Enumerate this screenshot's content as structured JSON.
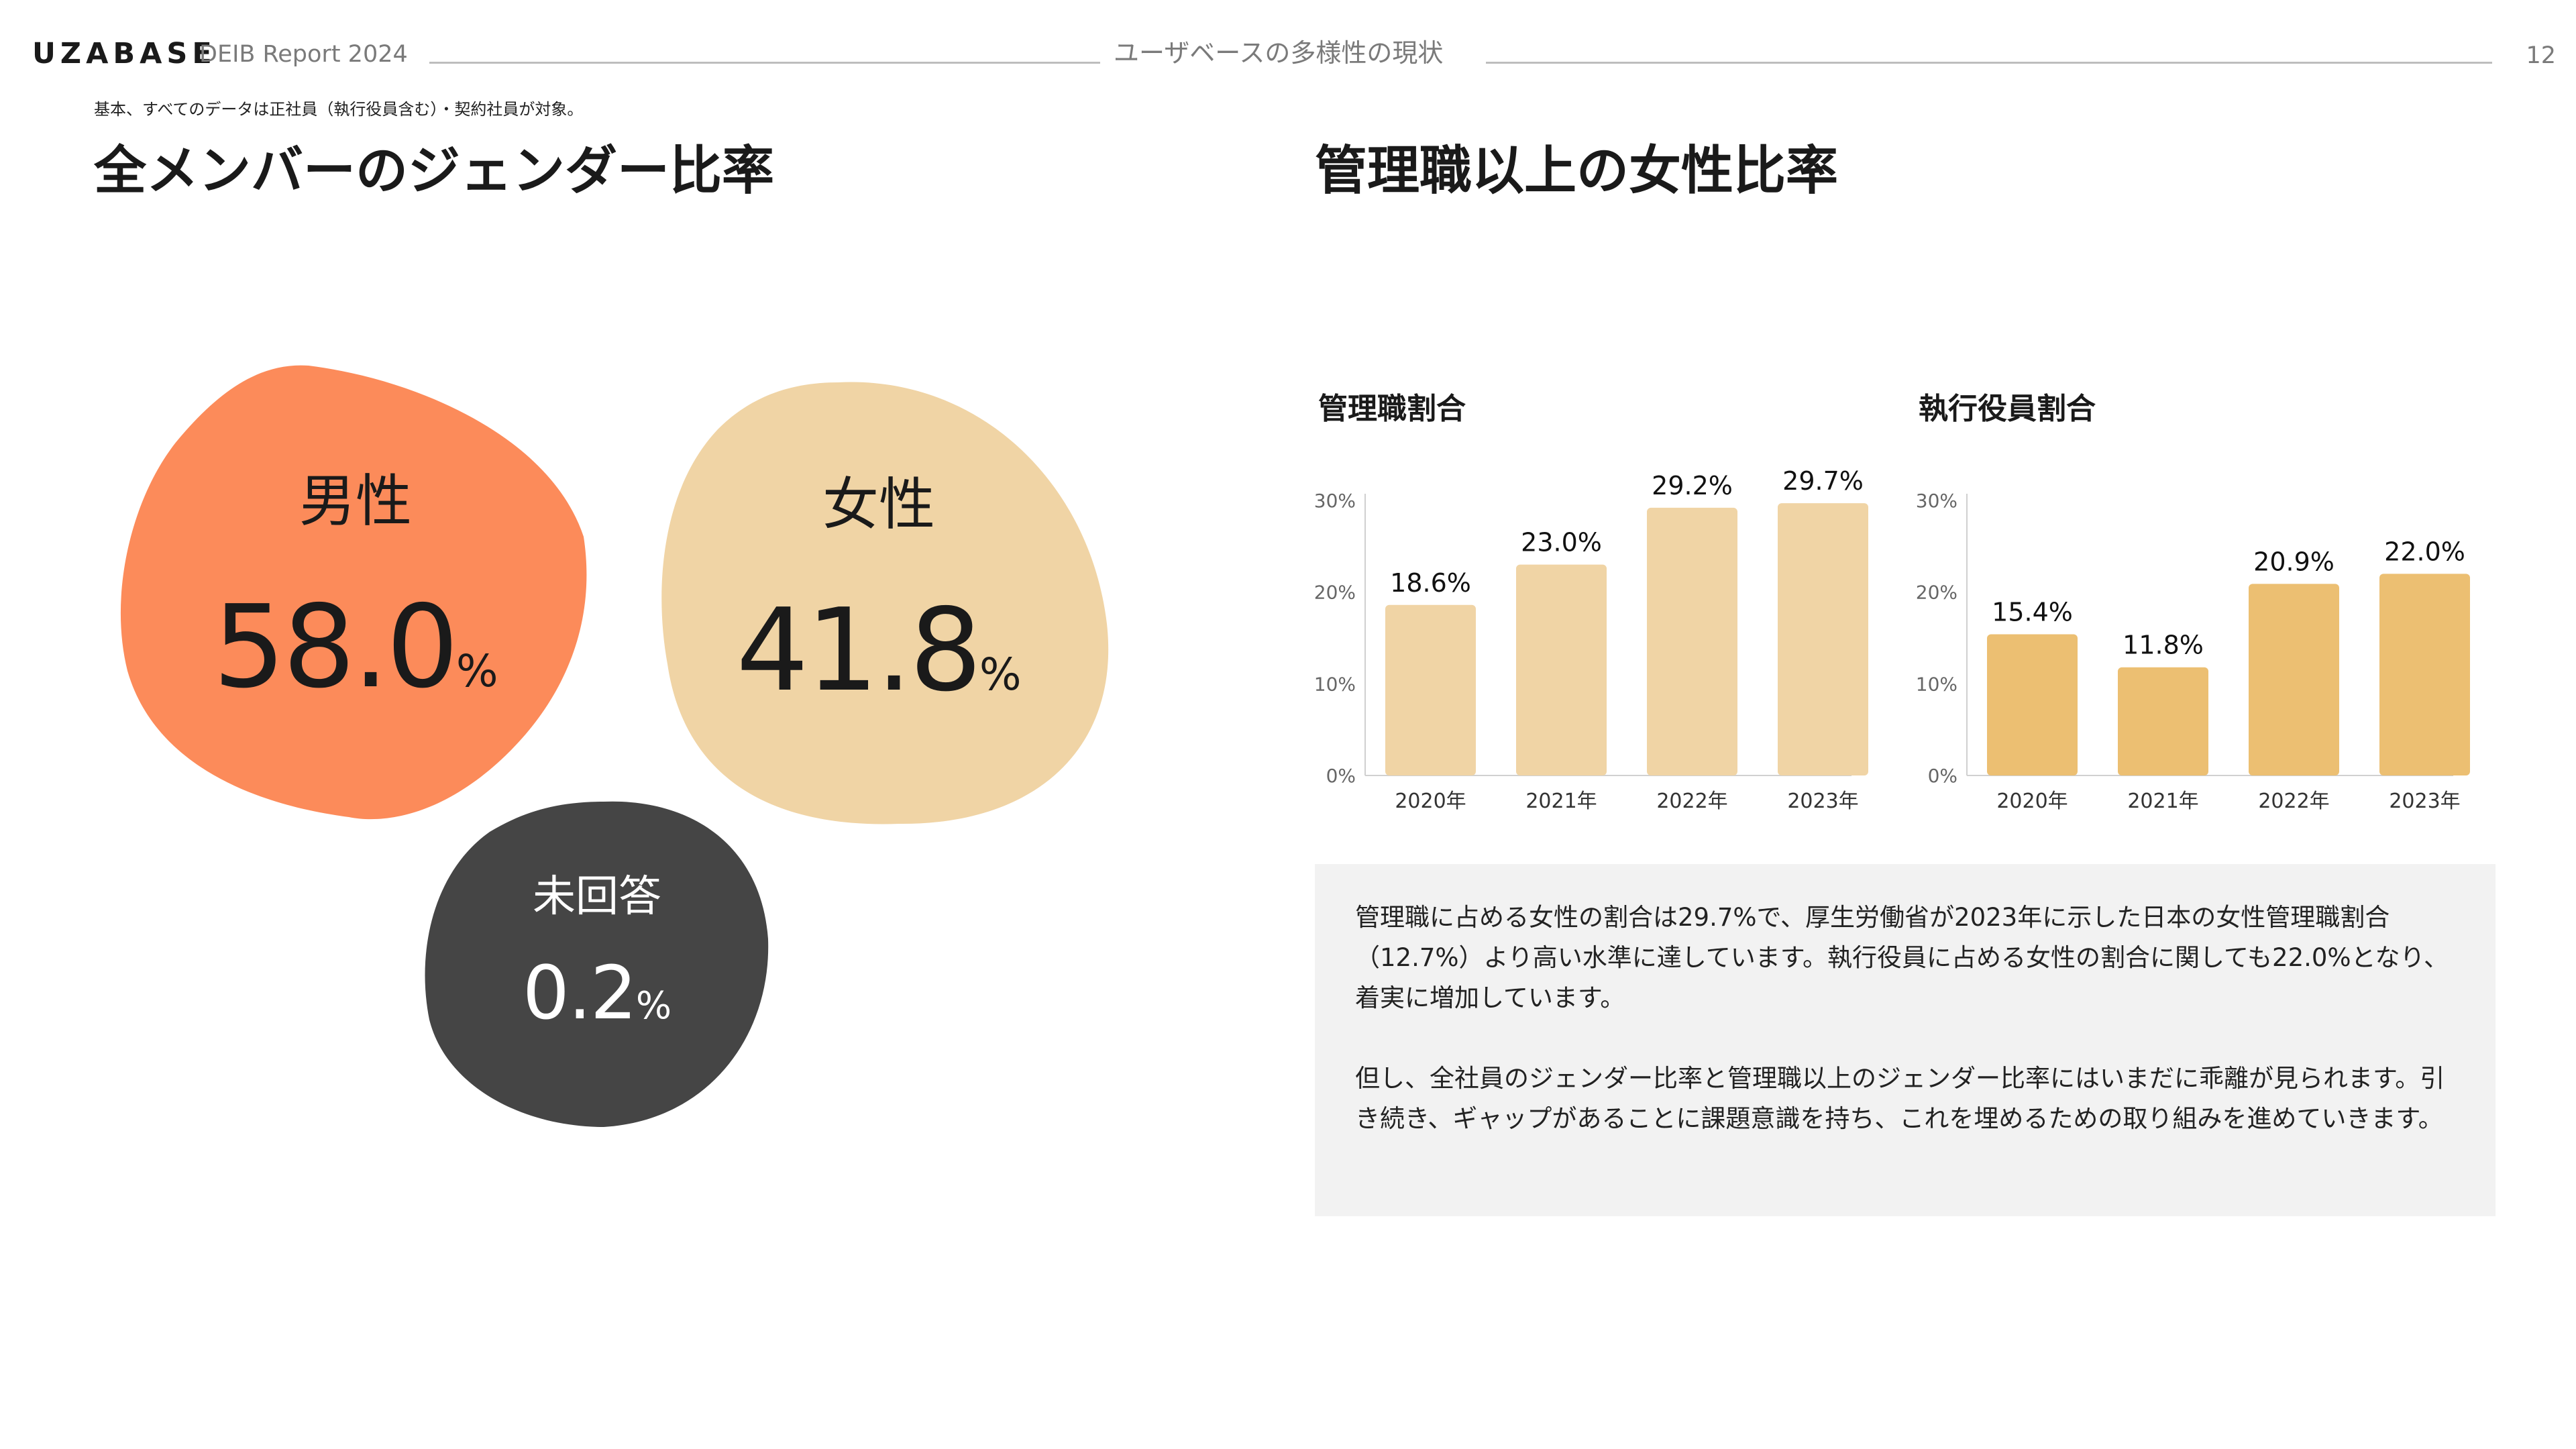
{
  "header": {
    "logo": "UZABASE",
    "report": "DEIB Report 2024",
    "section": "ユーザベースの多様性の現状",
    "page": "12"
  },
  "note": "基本、すべてのデータは正社員（執行役員含む）・契約社員が対象。",
  "left": {
    "heading": "全メンバーのジェンダー比率",
    "male": {
      "label": "男性",
      "value": "58.0",
      "unit": "%"
    },
    "female": {
      "label": "女性",
      "value": "41.8",
      "unit": "%"
    },
    "unanswered": {
      "label": "未回答",
      "value": "0.2",
      "unit": "%"
    }
  },
  "right": {
    "heading": "管理職以上の女性比率",
    "comment": [
      "管理職に占める女性の割合は29.7%で、厚生労働省が2023年に示した日本の女性管理職割合（12.7%）より高い水準に達しています。執行役員に占める女性の割合に関しても22.0%となり、着実に増加しています。",
      "但し、全社員のジェンダー比率と管理職以上のジェンダー比率にはいまだに乖離が見られます。引き続き、ギャップがあることに課題意識を持ち、これを埋めるための取り組みを進めていきます。"
    ]
  },
  "colors": {
    "male": "#fc8b5a",
    "female": "#f0d4a5",
    "unanswered": "#454545",
    "manager_bar": "#f0d4a5",
    "exec_bar": "#ecbf72",
    "comment_bg": "#f2f2f2"
  },
  "chart_data": [
    {
      "type": "pie",
      "categories": [
        "男性",
        "女性",
        "未回答"
      ],
      "values": [
        58.0,
        41.8,
        0.2
      ],
      "unit": "%"
    },
    {
      "type": "bar",
      "title": "管理職割合",
      "categories": [
        "2020年",
        "2021年",
        "2022年",
        "2023年"
      ],
      "values": [
        18.6,
        23.0,
        29.2,
        29.7
      ],
      "labels": [
        "18.6%",
        "23.0%",
        "29.2%",
        "29.7%"
      ],
      "ylim": [
        0,
        30
      ],
      "yticks": [
        "0%",
        "10%",
        "20%",
        "30%"
      ],
      "grid": false
    },
    {
      "type": "bar",
      "title": "執行役員割合",
      "categories": [
        "2020年",
        "2021年",
        "2022年",
        "2023年"
      ],
      "values": [
        15.4,
        11.8,
        20.9,
        22.0
      ],
      "labels": [
        "15.4%",
        "11.8%",
        "20.9%",
        "22.0%"
      ],
      "ylim": [
        0,
        30
      ],
      "yticks": [
        "0%",
        "10%",
        "20%",
        "30%"
      ],
      "grid": false
    }
  ]
}
